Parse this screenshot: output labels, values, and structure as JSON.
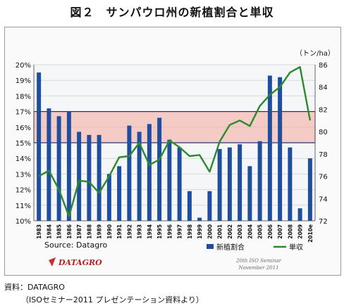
{
  "page_title": "図２　サンパウロ州の新植割合と単収",
  "source_line1": "資料：DATAGRO",
  "source_line2": "（ISOセミナー2011 プレゼンテーション資料より）",
  "chart_data": {
    "type": "bar+line",
    "categories": [
      "1983",
      "1984",
      "1985",
      "1986",
      "1987",
      "1988",
      "1989",
      "1990",
      "1991",
      "1992",
      "1993",
      "1994",
      "1995",
      "1996",
      "1997",
      "1998",
      "1999",
      "2000",
      "2001",
      "2002",
      "2003",
      "2004",
      "2005",
      "2006",
      "2007",
      "2008",
      "2009",
      "2010e"
    ],
    "y_left": {
      "unit": "%",
      "range": [
        10,
        20
      ],
      "ticks": [
        "10%",
        "11%",
        "12%",
        "13%",
        "14%",
        "15%",
        "16%",
        "17%",
        "18%",
        "19%",
        "20%"
      ]
    },
    "y_right": {
      "label": "（トン/ha）",
      "range": [
        72,
        86
      ],
      "ticks": [
        "72",
        "74",
        "76",
        "78",
        "80",
        "82",
        "84",
        "86"
      ]
    },
    "series": [
      {
        "name": "新植割合",
        "kind": "bar",
        "color": "#1f4e9e",
        "values": [
          19.5,
          17.2,
          16.7,
          17.0,
          15.7,
          15.5,
          15.5,
          13.0,
          13.5,
          16.1,
          15.7,
          16.2,
          16.6,
          15.2,
          14.7,
          11.9,
          10.2,
          11.9,
          14.6,
          14.7,
          14.9,
          13.5,
          15.1,
          19.3,
          19.2,
          14.7,
          10.8,
          14.0
        ]
      },
      {
        "name": "単収",
        "kind": "line",
        "color": "#2c8a2c",
        "values": [
          76.0,
          76.5,
          74.8,
          72.4,
          75.6,
          75.5,
          74.5,
          76.0,
          77.7,
          77.8,
          79.0,
          77.0,
          77.5,
          79.2,
          78.6,
          77.8,
          77.9,
          76.4,
          79.1,
          80.6,
          81.0,
          80.5,
          82.3,
          83.3,
          84.0,
          85.3,
          85.8,
          81.0
        ]
      }
    ],
    "shaded_band": {
      "from": 15.0,
      "to": 17.0
    },
    "annotations": {
      "source": "Source: Datagro",
      "logo": "DATAGRO",
      "seminar_line1": "20th ISO Seminar",
      "seminar_line2": "November 2011"
    }
  }
}
